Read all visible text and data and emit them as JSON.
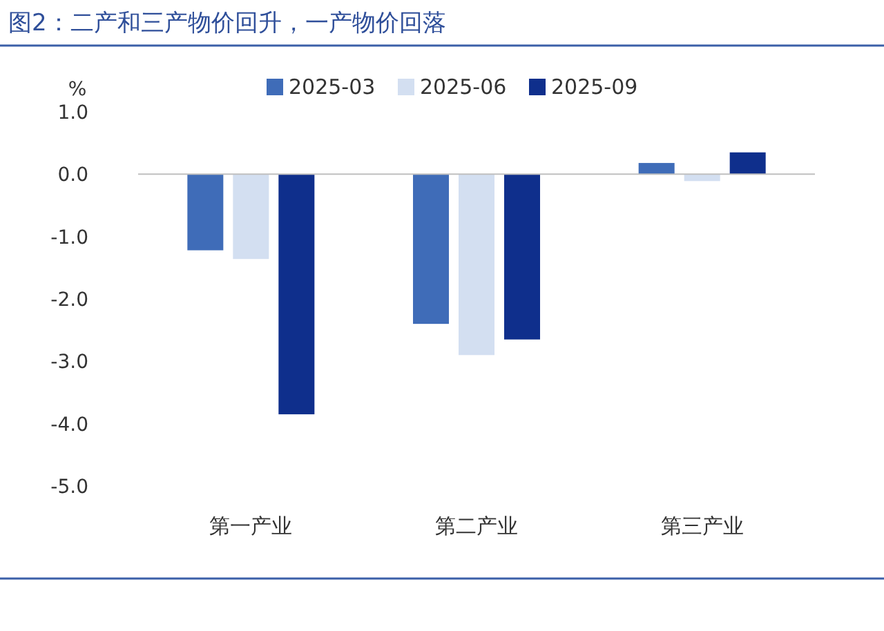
{
  "chart_data": {
    "type": "bar",
    "title": "图2：二产和三产物价回升，一产物价回落",
    "ylabel": "%",
    "categories": [
      "第一产业",
      "第二产业",
      "第三产业"
    ],
    "series": [
      {
        "name": "2025-03",
        "color": "#3f6cb8",
        "values": [
          -1.22,
          -2.4,
          0.18
        ]
      },
      {
        "name": "2025-06",
        "color": "#d3dff1",
        "values": [
          -1.36,
          -2.9,
          -0.11
        ]
      },
      {
        "name": "2025-09",
        "color": "#0f2f8c",
        "values": [
          -3.85,
          -2.65,
          0.35
        ]
      }
    ],
    "ylim": [
      -5,
      1
    ],
    "yticks": [
      {
        "value": -5,
        "label": "-5.0"
      },
      {
        "value": -4,
        "label": "-4.0"
      },
      {
        "value": -3,
        "label": "-3.0"
      },
      {
        "value": -2,
        "label": "-2.0"
      },
      {
        "value": -1,
        "label": "-1.0"
      },
      {
        "value": 0,
        "label": "0.0"
      },
      {
        "value": 1,
        "label": "1.0"
      }
    ],
    "legend": "top"
  }
}
